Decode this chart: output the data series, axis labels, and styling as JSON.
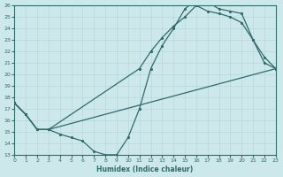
{
  "xlabel": "Humidex (Indice chaleur)",
  "xlim": [
    0,
    23
  ],
  "ylim": [
    13,
    26
  ],
  "xticks": [
    0,
    1,
    2,
    3,
    4,
    5,
    6,
    7,
    8,
    9,
    10,
    11,
    12,
    13,
    14,
    15,
    16,
    17,
    18,
    19,
    20,
    21,
    22,
    23
  ],
  "yticks": [
    13,
    14,
    15,
    16,
    17,
    18,
    19,
    20,
    21,
    22,
    23,
    24,
    25,
    26
  ],
  "bg_color": "#cde8ea",
  "line_color": "#2e6b6b",
  "grid_color": "#b8d8db",
  "line1_x": [
    0,
    1,
    2,
    3,
    4,
    5,
    6,
    7,
    8,
    9,
    10,
    11,
    12,
    13,
    14,
    15,
    16,
    17,
    18,
    19,
    20,
    21,
    22,
    23
  ],
  "line1_y": [
    17.5,
    16.5,
    15.2,
    15.2,
    14.8,
    14.5,
    14.2,
    13.3,
    13.0,
    13.0,
    14.5,
    17.0,
    20.5,
    22.5,
    24.0,
    25.7,
    26.5,
    26.3,
    25.7,
    25.5,
    25.3,
    23.0,
    21.0,
    20.5
  ],
  "line2_x": [
    0,
    1,
    2,
    3,
    11,
    12,
    13,
    14,
    15,
    16,
    17,
    18,
    19,
    20,
    21,
    22,
    23
  ],
  "line2_y": [
    17.5,
    16.5,
    15.2,
    15.2,
    20.5,
    22.0,
    23.2,
    24.2,
    25.0,
    26.0,
    25.5,
    25.3,
    25.0,
    24.5,
    23.0,
    21.5,
    20.5
  ],
  "line3_x": [
    0,
    1,
    2,
    3,
    23
  ],
  "line3_y": [
    17.5,
    16.5,
    15.2,
    15.2,
    20.5
  ]
}
